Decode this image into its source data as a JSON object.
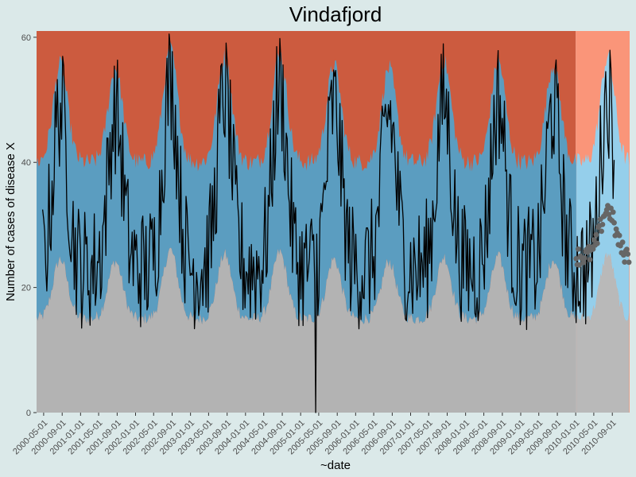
{
  "chart_data": {
    "type": "area",
    "title": "Vindafjord",
    "xlabel": "~date",
    "ylabel": "Number of cases of disease X",
    "xlim": [
      "2000-03-15",
      "2010-12-25"
    ],
    "ylim": [
      0,
      61
    ],
    "yticks": [
      0,
      20,
      40,
      60
    ],
    "xticks": [
      "2000-05-01",
      "2000-09-01",
      "2001-01-01",
      "2001-05-01",
      "2001-09-01",
      "2002-01-01",
      "2002-05-01",
      "2002-09-01",
      "2003-01-01",
      "2003-05-01",
      "2003-09-01",
      "2004-01-01",
      "2004-05-01",
      "2004-09-01",
      "2005-01-01",
      "2005-05-01",
      "2005-09-01",
      "2006-01-01",
      "2006-05-01",
      "2006-09-01",
      "2007-01-01",
      "2007-05-01",
      "2007-09-01",
      "2008-01-01",
      "2008-05-01",
      "2008-09-01",
      "2009-01-01",
      "2009-05-01",
      "2009-09-01",
      "2010-01-01",
      "2010-05-01",
      "2010-09-01"
    ],
    "grid": false,
    "legend": "none",
    "forecast_start": "2010-01-01",
    "peak_dates": [
      "2000-08-20",
      "2001-08-20",
      "2002-08-20",
      "2003-08-15",
      "2004-08-15",
      "2005-08-10",
      "2006-08-10",
      "2007-08-10",
      "2008-08-05",
      "2009-08-05",
      "2010-08-01"
    ],
    "peak_values": [
      49,
      48,
      53,
      51,
      52,
      49,
      48,
      50,
      50,
      49,
      51
    ],
    "baseline_low": 23,
    "bands": {
      "lower_min": 15,
      "lower_max": 26,
      "upper_min": 40,
      "upper_max": 58
    },
    "outlier": {
      "date": "2005-04-10",
      "value": 0
    },
    "forecast_points_range": [
      25,
      33
    ],
    "colors": {
      "background": "#dbe9e9",
      "above_band": "#cc5b3f",
      "above_band_forecast": "#fa8c6e",
      "band": "#5b9dc0",
      "band_forecast": "#8ccbea",
      "below_band": "#b3b3b3",
      "forecast_points": "#666666",
      "line": "#000000",
      "text": "#4d4d4d"
    }
  }
}
